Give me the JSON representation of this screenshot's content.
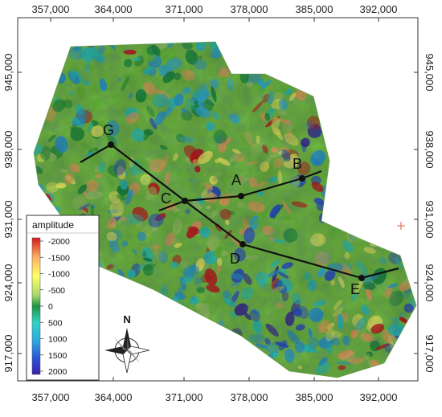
{
  "map": {
    "x_ticks": [
      "357,000",
      "364,000",
      "371,000",
      "378,000",
      "385,000",
      "392,000"
    ],
    "y_ticks": [
      "945,000",
      "938,000",
      "931,000",
      "924,000",
      "917,000"
    ],
    "points": [
      {
        "id": "G",
        "label": "G"
      },
      {
        "id": "C",
        "label": "C"
      },
      {
        "id": "A",
        "label": "A"
      },
      {
        "id": "B",
        "label": "B"
      },
      {
        "id": "D",
        "label": "D"
      },
      {
        "id": "E",
        "label": "E"
      }
    ],
    "lines": [
      {
        "name": "profile-g-e",
        "points": [
          "G",
          "C",
          "D",
          "E"
        ]
      },
      {
        "name": "profile-c-b",
        "points": [
          "C",
          "A",
          "B"
        ]
      }
    ]
  },
  "legend": {
    "title": "amplitude",
    "labels": [
      "-2000",
      "-1500",
      "-1000",
      "-500",
      "0",
      "500",
      "1000",
      "1500",
      "2000"
    ],
    "colors": [
      "#d7191c",
      "#fdae61",
      "#ffff66",
      "#a6d96a",
      "#1a9641",
      "#2fd3c6",
      "#2ba7e0",
      "#2c55d6",
      "#3b1fa8"
    ]
  },
  "north": {
    "label": "N"
  },
  "accent": {
    "marker": "#e05a3a"
  }
}
